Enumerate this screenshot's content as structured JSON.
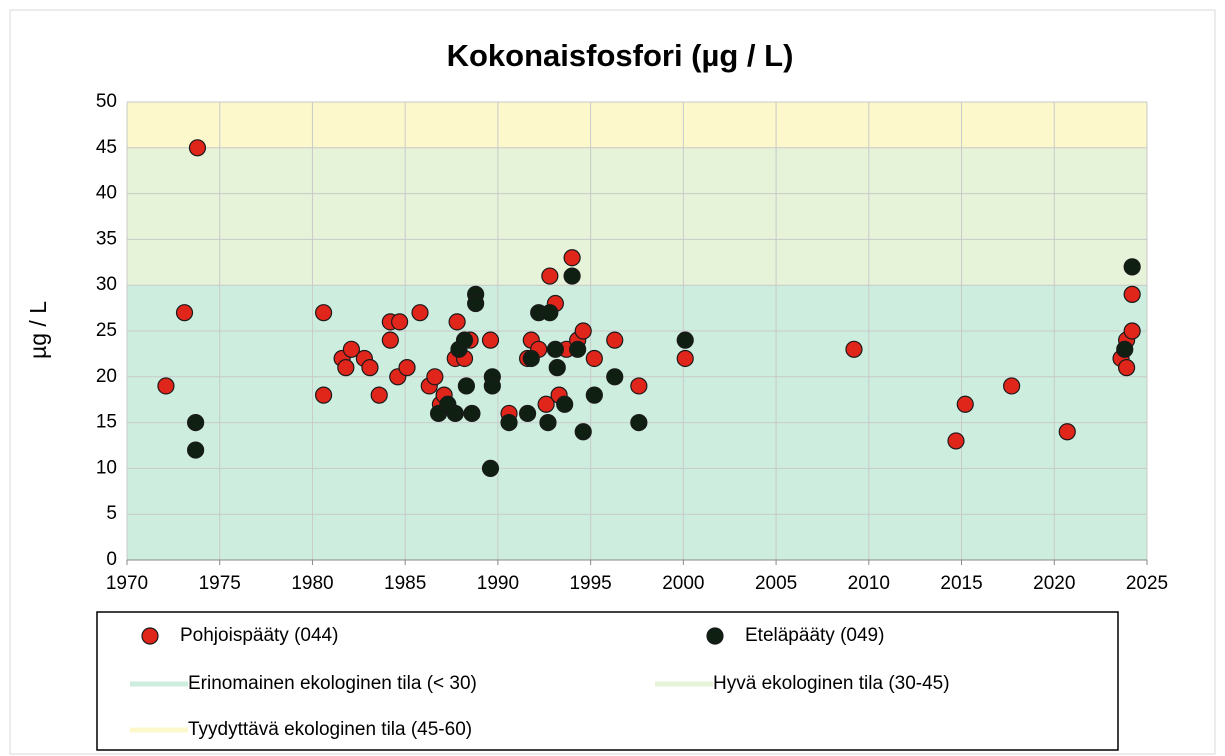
{
  "chart_data": {
    "type": "scatter",
    "title": "Kokonaisfosfori  (µg / L)",
    "ylabel": "µg / L",
    "xlim": [
      1970,
      2025
    ],
    "xticks": [
      1970,
      1975,
      1980,
      1985,
      1990,
      1995,
      2000,
      2005,
      2010,
      2015,
      2020,
      2025
    ],
    "ylim": [
      0,
      50
    ],
    "yticks": [
      0,
      5,
      10,
      15,
      20,
      25,
      30,
      35,
      40,
      45,
      50
    ],
    "grid": true,
    "bands": [
      {
        "name": "Erinomainen ekologinen tila (< 30)",
        "from": 0,
        "to": 30,
        "color": "#cdeedf"
      },
      {
        "name": "Hyvä ekologinen tila (30-45)",
        "from": 30,
        "to": 45,
        "color": "#e6f3d9"
      },
      {
        "name": "Tyydyttävä ekologinen tila (45-60)",
        "from": 45,
        "to": 60,
        "color": "#fdf8cc"
      }
    ],
    "series": [
      {
        "name": "Pohjoispääty (044)",
        "color": "#e0251b",
        "x": [
          1972.1,
          1973.8,
          1973.1,
          1980.6,
          1980.6,
          1981.6,
          1981.8,
          1982.1,
          1982.8,
          1983.1,
          1983.6,
          1984.2,
          1984.2,
          1984.7,
          1984.6,
          1985.1,
          1985.8,
          1986.3,
          1986.6,
          1986.9,
          1987.1,
          1987.8,
          1987.7,
          1988.2,
          1988.5,
          1989.6,
          1990.6,
          1991.6,
          1991.8,
          1992.2,
          1992.6,
          1992.8,
          1993.1,
          1993.3,
          1994.0,
          1993.7,
          1994.3,
          1994.6,
          1995.2,
          1996.3,
          1997.6,
          2000.1,
          2009.2,
          2014.7,
          2015.2,
          2017.7,
          2020.7,
          2023.6,
          2023.9,
          2023.9,
          2024.2,
          2024.2
        ],
        "values": [
          19,
          45,
          27,
          27,
          18,
          22,
          21,
          23,
          22,
          21,
          18,
          26,
          24,
          26,
          20,
          21,
          27,
          19,
          20,
          17,
          18,
          26,
          22,
          22,
          24,
          24,
          16,
          22,
          24,
          23,
          17,
          31,
          28,
          18,
          33,
          23,
          24,
          25,
          22,
          24,
          19,
          22,
          23,
          13,
          17,
          19,
          14,
          22,
          21,
          24,
          29,
          25
        ]
      },
      {
        "name": "Eteläpääty (049)",
        "color": "#0f1f12",
        "x": [
          1973.7,
          1973.7,
          1986.8,
          1987.3,
          1987.7,
          1987.9,
          1988.2,
          1988.3,
          1988.6,
          1988.8,
          1988.8,
          1989.7,
          1989.7,
          1989.6,
          1990.6,
          1991.6,
          1991.8,
          1992.2,
          1992.8,
          1992.7,
          1993.1,
          1993.2,
          1993.6,
          1994.0,
          1994.3,
          1994.6,
          1995.2,
          1996.3,
          1997.6,
          2000.1,
          2023.8,
          2024.2
        ],
        "values": [
          15,
          12,
          16,
          17,
          16,
          23,
          24,
          19,
          16,
          29,
          28,
          20,
          19,
          10,
          15,
          16,
          22,
          27,
          27,
          15,
          23,
          21,
          17,
          31,
          23,
          14,
          18,
          20,
          15,
          24,
          23,
          32
        ]
      }
    ]
  }
}
